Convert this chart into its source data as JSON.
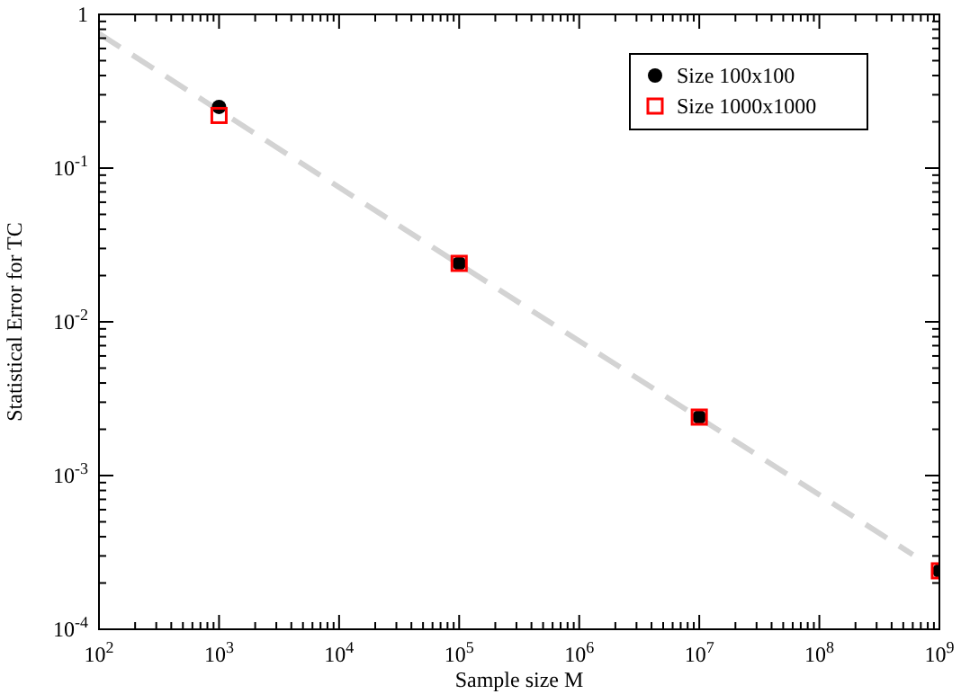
{
  "chart_data": {
    "type": "scatter",
    "xlabel": "Sample size M",
    "ylabel": "Statistical Error for TC",
    "log": "xy",
    "xlim": [
      100,
      1000000000
    ],
    "ylim": [
      0.0001,
      1
    ],
    "xticks": [
      {
        "value": 100,
        "label": "10$^{2}$"
      },
      {
        "value": 1000,
        "label": "10$^{3}$"
      },
      {
        "value": 10000,
        "label": "10$^{4}$"
      },
      {
        "value": 100000,
        "label": "10$^{5}$"
      },
      {
        "value": 1000000,
        "label": "10$^{6}$"
      },
      {
        "value": 10000000,
        "label": "10$^{7}$"
      },
      {
        "value": 100000000,
        "label": "10$^{8}$"
      },
      {
        "value": 1000000000,
        "label": "10$^{9}$"
      }
    ],
    "yticks": [
      {
        "value": 0.0001,
        "label": "10$^{-4}$"
      },
      {
        "value": 0.001,
        "label": "10$^{-3}$"
      },
      {
        "value": 0.01,
        "label": "10$^{-2}$"
      },
      {
        "value": 0.1,
        "label": "10$^{-1}$"
      },
      1
    ],
    "x": [
      1000,
      100000,
      10000000,
      1000000000
    ],
    "series": [
      {
        "type": "line",
        "x": [
          100,
          600000000
        ],
        "values": [
          0.75,
          0.000306
        ],
        "color": "#d3d3d3",
        "line_style": "dashed",
        "marker": "none"
      },
      {
        "name": "Size 100x100",
        "color": "#000000",
        "marker": "circle",
        "values": [
          0.25,
          0.024,
          0.0024,
          0.00024
        ]
      },
      {
        "name": "Size 1000x1000",
        "color": "#ff0000",
        "marker": "square",
        "values": [
          0.22,
          0.024,
          0.0024,
          0.00024
        ]
      }
    ],
    "grid": false,
    "legend": "top right"
  }
}
